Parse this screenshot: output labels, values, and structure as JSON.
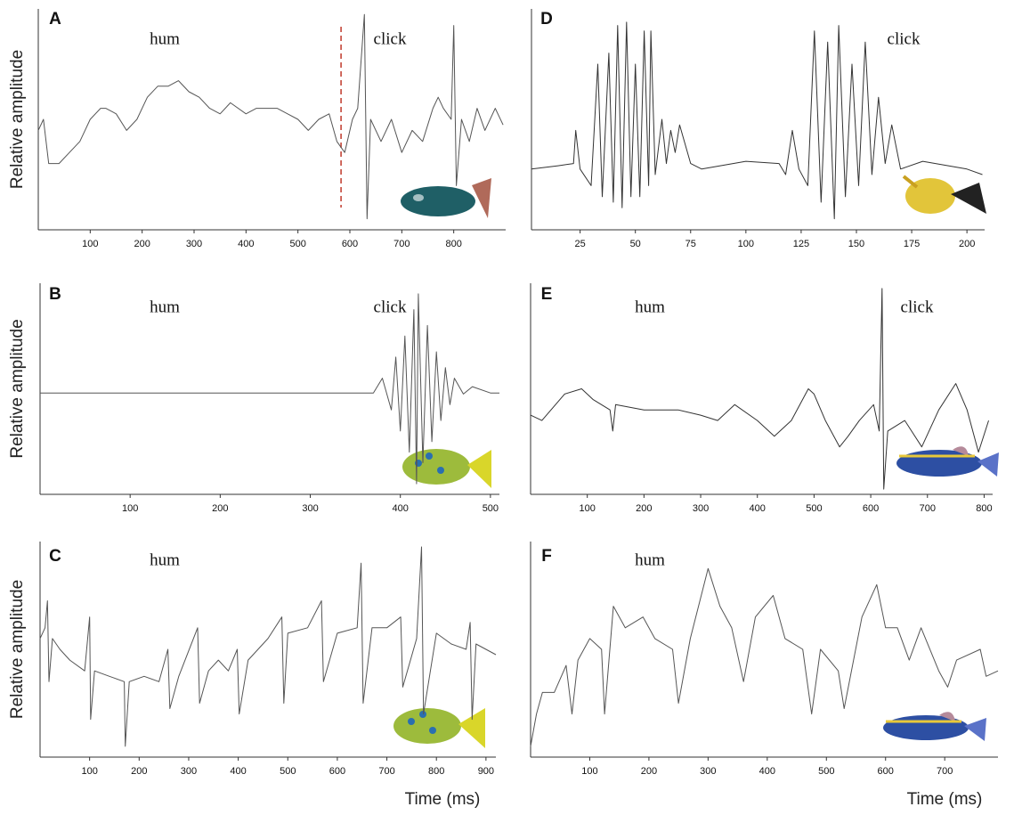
{
  "chart_data": [
    {
      "type": "line",
      "label": "A",
      "annotations": [
        "hum",
        "click"
      ],
      "ylabel": "Relative amplitude",
      "color": "#555",
      "divider_x": 583,
      "divider_color": "#c0392b",
      "x": [
        0,
        10,
        20,
        40,
        60,
        80,
        90,
        100,
        120,
        130,
        150,
        170,
        190,
        210,
        230,
        250,
        270,
        290,
        310,
        330,
        350,
        370,
        400,
        420,
        440,
        460,
        480,
        500,
        520,
        540,
        560,
        575,
        590,
        605,
        615,
        628,
        633,
        640,
        660,
        680,
        700,
        720,
        740,
        760,
        770,
        780,
        795,
        800,
        805,
        815,
        830,
        845,
        860,
        880,
        895
      ],
      "values": [
        -0.1,
        0.0,
        -0.4,
        -0.4,
        -0.3,
        -0.2,
        -0.1,
        0.0,
        0.1,
        0.1,
        0.05,
        -0.1,
        0.0,
        0.2,
        0.3,
        0.3,
        0.35,
        0.25,
        0.2,
        0.1,
        0.05,
        0.15,
        0.05,
        0.1,
        0.1,
        0.1,
        0.05,
        0.0,
        -0.1,
        0.0,
        0.05,
        -0.2,
        -0.3,
        0.0,
        0.1,
        0.95,
        -0.9,
        0.0,
        -0.2,
        0.0,
        -0.3,
        -0.1,
        -0.2,
        0.1,
        0.2,
        0.1,
        0.0,
        0.85,
        -0.6,
        0.0,
        -0.2,
        0.1,
        -0.1,
        0.1,
        -0.05
      ],
      "xlim": [
        0,
        900
      ],
      "ylim": [
        -1,
        1
      ],
      "xticks": [
        100,
        200,
        300,
        400,
        500,
        600,
        700,
        800
      ]
    },
    {
      "type": "line",
      "label": "B",
      "annotations": [
        "hum",
        "click"
      ],
      "ylabel": "Relative amplitude",
      "color": "#555",
      "x": [
        0,
        370,
        380,
        390,
        395,
        400,
        405,
        410,
        415,
        418,
        420,
        425,
        430,
        435,
        440,
        445,
        450,
        455,
        460,
        470,
        480,
        500,
        510
      ],
      "values": [
        -0.04,
        -0.04,
        0.1,
        -0.2,
        0.3,
        -0.4,
        0.5,
        -0.6,
        0.75,
        -0.9,
        0.9,
        -0.7,
        0.6,
        -0.5,
        0.35,
        -0.3,
        0.2,
        -0.15,
        0.1,
        -0.05,
        0.02,
        -0.04,
        -0.04
      ],
      "xlim": [
        0,
        510
      ],
      "ylim": [
        -1,
        1
      ],
      "xticks": [
        100,
        200,
        300,
        400,
        500
      ]
    },
    {
      "type": "line",
      "label": "C",
      "annotations": [
        "hum"
      ],
      "ylabel": "Relative amplitude",
      "xlabel": "Time (ms)",
      "color": "#555",
      "x": [
        0,
        10,
        15,
        18,
        25,
        40,
        60,
        90,
        100,
        102,
        110,
        140,
        170,
        172,
        180,
        210,
        240,
        258,
        262,
        280,
        318,
        322,
        340,
        360,
        380,
        398,
        402,
        420,
        460,
        488,
        492,
        500,
        540,
        568,
        572,
        600,
        640,
        648,
        652,
        670,
        700,
        728,
        732,
        760,
        770,
        774,
        800,
        830,
        860,
        868,
        872,
        880,
        920
      ],
      "values": [
        0.1,
        0.2,
        0.45,
        -0.3,
        0.1,
        0.0,
        -0.1,
        -0.2,
        0.3,
        -0.65,
        -0.2,
        -0.25,
        -0.3,
        -0.9,
        -0.3,
        -0.25,
        -0.3,
        0.0,
        -0.55,
        -0.25,
        0.2,
        -0.5,
        -0.2,
        -0.1,
        -0.2,
        0.0,
        -0.6,
        -0.1,
        0.1,
        0.3,
        -0.5,
        0.15,
        0.2,
        0.45,
        -0.3,
        0.15,
        0.2,
        0.8,
        -0.5,
        0.2,
        0.2,
        0.3,
        -0.35,
        0.1,
        0.95,
        -0.6,
        0.15,
        0.05,
        0.0,
        0.25,
        -0.65,
        0.05,
        -0.05
      ],
      "xlim": [
        0,
        920
      ],
      "ylim": [
        -1,
        1
      ],
      "xticks": [
        100,
        200,
        300,
        400,
        500,
        600,
        700,
        800,
        900
      ]
    },
    {
      "type": "line",
      "label": "D",
      "annotations": [
        "click"
      ],
      "color": "#333",
      "x": [
        3,
        15,
        22,
        23,
        25,
        30,
        33,
        35,
        38,
        40,
        42,
        44,
        46,
        48,
        50,
        52,
        54,
        56,
        57,
        59,
        62,
        64,
        66,
        68,
        70,
        75,
        80,
        100,
        115,
        118,
        121,
        124,
        128,
        131,
        134,
        137,
        140,
        142,
        145,
        148,
        151,
        154,
        157,
        160,
        163,
        166,
        170,
        180,
        200,
        207
      ],
      "values": [
        -0.45,
        -0.42,
        -0.4,
        -0.1,
        -0.45,
        -0.6,
        0.5,
        -0.7,
        0.6,
        -0.75,
        0.85,
        -0.8,
        0.88,
        -0.7,
        0.5,
        -0.7,
        0.8,
        -0.6,
        0.8,
        -0.5,
        0.0,
        -0.4,
        -0.1,
        -0.3,
        -0.05,
        -0.4,
        -0.45,
        -0.38,
        -0.4,
        -0.5,
        -0.1,
        -0.45,
        -0.6,
        0.8,
        -0.75,
        0.7,
        -0.9,
        0.85,
        -0.7,
        0.5,
        -0.6,
        0.7,
        -0.5,
        0.2,
        -0.4,
        -0.05,
        -0.45,
        -0.38,
        -0.45,
        -0.5
      ],
      "xlim": [
        3,
        208
      ],
      "ylim": [
        -1,
        1
      ],
      "xticks": [
        25,
        50,
        75,
        100,
        125,
        150,
        175,
        200
      ]
    },
    {
      "type": "line",
      "label": "E",
      "annotations": [
        "hum",
        "click"
      ],
      "color": "#333",
      "x": [
        0,
        20,
        60,
        90,
        110,
        140,
        145,
        150,
        200,
        260,
        300,
        330,
        360,
        400,
        430,
        460,
        490,
        500,
        520,
        545,
        560,
        580,
        605,
        615,
        620,
        623,
        630,
        660,
        690,
        720,
        750,
        770,
        790,
        808
      ],
      "values": [
        -0.25,
        -0.3,
        -0.05,
        0.0,
        -0.1,
        -0.2,
        -0.4,
        -0.15,
        -0.2,
        -0.2,
        -0.25,
        -0.3,
        -0.15,
        -0.3,
        -0.45,
        -0.3,
        0.0,
        -0.05,
        -0.3,
        -0.55,
        -0.45,
        -0.3,
        -0.15,
        -0.4,
        0.95,
        -0.95,
        -0.4,
        -0.3,
        -0.55,
        -0.2,
        0.05,
        -0.2,
        -0.6,
        -0.3
      ],
      "xlim": [
        0,
        815
      ],
      "ylim": [
        -1,
        1
      ],
      "xticks": [
        100,
        200,
        300,
        400,
        500,
        600,
        700,
        800
      ]
    },
    {
      "type": "line",
      "label": "F",
      "annotations": [
        "hum"
      ],
      "xlabel": "Time (ms)",
      "color": "#555",
      "x": [
        0,
        10,
        20,
        40,
        60,
        70,
        80,
        100,
        120,
        125,
        140,
        160,
        190,
        210,
        240,
        250,
        270,
        300,
        320,
        340,
        360,
        380,
        410,
        430,
        460,
        475,
        490,
        520,
        530,
        560,
        585,
        600,
        620,
        640,
        660,
        690,
        705,
        720,
        760,
        770,
        790
      ],
      "values": [
        -0.9,
        -0.6,
        -0.4,
        -0.4,
        -0.15,
        -0.6,
        -0.1,
        0.1,
        0.0,
        -0.6,
        0.4,
        0.2,
        0.3,
        0.1,
        0.0,
        -0.5,
        0.1,
        0.75,
        0.4,
        0.2,
        -0.3,
        0.3,
        0.5,
        0.1,
        0.0,
        -0.6,
        0.0,
        -0.2,
        -0.55,
        0.3,
        0.6,
        0.2,
        0.2,
        -0.1,
        0.2,
        -0.2,
        -0.35,
        -0.1,
        0.0,
        -0.25,
        -0.2
      ],
      "xlim": [
        0,
        790
      ],
      "ylim": [
        -1,
        1
      ],
      "xticks": [
        100,
        200,
        300,
        400,
        500,
        600,
        700
      ]
    }
  ]
}
